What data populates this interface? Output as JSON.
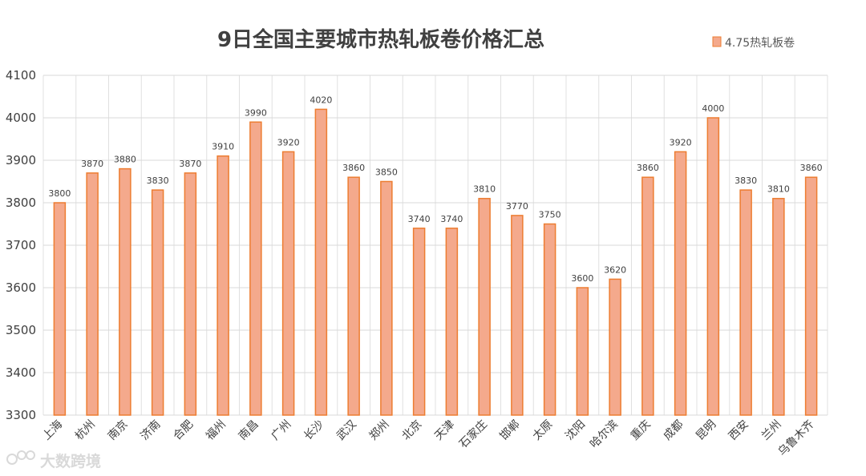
{
  "chart_data": {
    "type": "bar",
    "title": "9日全国主要城市热轧板卷价格汇总",
    "categories": [
      "上海",
      "杭州",
      "南京",
      "济南",
      "合肥",
      "福州",
      "南昌",
      "广州",
      "长沙",
      "武汉",
      "郑州",
      "北京",
      "天津",
      "石家庄",
      "邯郸",
      "太原",
      "沈阳",
      "哈尔滨",
      "重庆",
      "成都",
      "昆明",
      "西安",
      "兰州",
      "乌鲁木齐"
    ],
    "series": [
      {
        "name": "4.75热轧板卷",
        "values": [
          3800,
          3870,
          3880,
          3830,
          3870,
          3910,
          3990,
          3920,
          4020,
          3860,
          3850,
          3740,
          3740,
          3810,
          3770,
          3750,
          3600,
          3620,
          3860,
          3920,
          4000,
          3830,
          3810,
          3860
        ],
        "color": "#f4a98c",
        "border_color": "#ed7d31"
      }
    ],
    "ylim": [
      3300,
      4100
    ],
    "yticks": [
      3300,
      3400,
      3500,
      3600,
      3700,
      3800,
      3900,
      4000,
      4100
    ],
    "grid": true,
    "legend_position": "top-right",
    "data_labels": true
  },
  "watermark": {
    "text": "大数跨境"
  }
}
